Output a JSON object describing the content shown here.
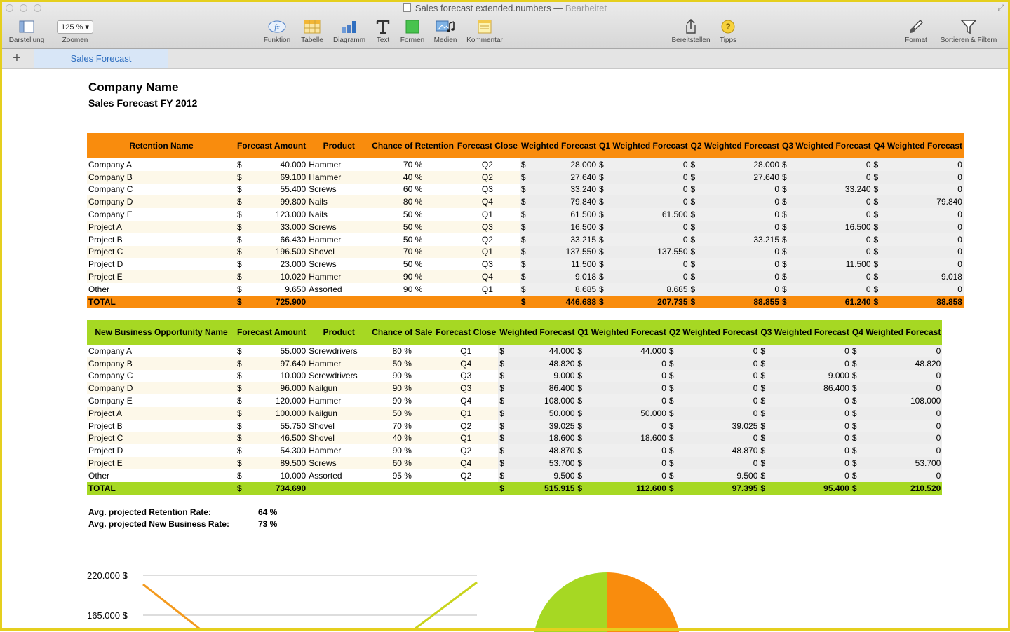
{
  "window": {
    "title": "Sales forecast extended.numbers",
    "separator": "—",
    "status": "Bearbeitet"
  },
  "toolbar": {
    "view_label": "Darstellung",
    "zoom_value": "125 %",
    "zoom_label": "Zoomen",
    "function_label": "Funktion",
    "table_label": "Tabelle",
    "chart_label": "Diagramm",
    "text_label": "Text",
    "shapes_label": "Formen",
    "media_label": "Medien",
    "comment_label": "Kommentar",
    "share_label": "Bereitstellen",
    "tips_label": "Tipps",
    "format_label": "Format",
    "sort_label": "Sortieren & Filtern"
  },
  "tabs": {
    "add": "+",
    "active": "Sales Forecast"
  },
  "doc": {
    "company": "Company Name",
    "subtitle": "Sales Forecast FY 2012"
  },
  "colors": {
    "retention_header": "#f98c0d",
    "new_business_header": "#a6d823",
    "tab_active_text": "#2f6fc0",
    "window_border": "#e5cf1e"
  },
  "retention": {
    "headers": [
      "Retention Name",
      "Forecast Amount",
      "Product",
      "Chance of Retention",
      "Forecast Close",
      "Weighted Forecast",
      "Q1 Weighted Forecast",
      "Q2 Weighted Forecast",
      "Q3 Weighted Forecast",
      "Q4 Weighted Forecast"
    ],
    "rows": [
      [
        "Company A",
        "40.000",
        "Hammer",
        "70 %",
        "Q2",
        "28.000",
        "0",
        "28.000",
        "0",
        "0"
      ],
      [
        "Company B",
        "69.100",
        "Hammer",
        "40 %",
        "Q2",
        "27.640",
        "0",
        "27.640",
        "0",
        "0"
      ],
      [
        "Company C",
        "55.400",
        "Screws",
        "60 %",
        "Q3",
        "33.240",
        "0",
        "0",
        "33.240",
        "0"
      ],
      [
        "Company D",
        "99.800",
        "Nails",
        "80 %",
        "Q4",
        "79.840",
        "0",
        "0",
        "0",
        "79.840"
      ],
      [
        "Company E",
        "123.000",
        "Nails",
        "50 %",
        "Q1",
        "61.500",
        "61.500",
        "0",
        "0",
        "0"
      ],
      [
        "Project A",
        "33.000",
        "Screws",
        "50 %",
        "Q3",
        "16.500",
        "0",
        "0",
        "16.500",
        "0"
      ],
      [
        "Project B",
        "66.430",
        "Hammer",
        "50 %",
        "Q2",
        "33.215",
        "0",
        "33.215",
        "0",
        "0"
      ],
      [
        "Project C",
        "196.500",
        "Shovel",
        "70 %",
        "Q1",
        "137.550",
        "137.550",
        "0",
        "0",
        "0"
      ],
      [
        "Project D",
        "23.000",
        "Screws",
        "50 %",
        "Q3",
        "11.500",
        "0",
        "0",
        "11.500",
        "0"
      ],
      [
        "Project E",
        "10.020",
        "Hammer",
        "90 %",
        "Q4",
        "9.018",
        "0",
        "0",
        "0",
        "9.018"
      ],
      [
        "Other",
        "9.650",
        "Assorted",
        "90 %",
        "Q1",
        "8.685",
        "8.685",
        "0",
        "0",
        "0"
      ]
    ],
    "total": [
      "TOTAL",
      "725.900",
      "",
      "",
      "",
      "446.688",
      "207.735",
      "88.855",
      "61.240",
      "88.858"
    ]
  },
  "new_business": {
    "headers": [
      "New Business Opportunity Name",
      "Forecast Amount",
      "Product",
      "Chance of Sale",
      "Forecast Close",
      "Weighted Forecast",
      "Q1 Weighted Forecast",
      "Q2 Weighted Forecast",
      "Q3 Weighted Forecast",
      "Q4 Weighted Forecast"
    ],
    "rows": [
      [
        "Company A",
        "55.000",
        "Screwdrivers",
        "80 %",
        "Q1",
        "44.000",
        "44.000",
        "0",
        "0",
        "0"
      ],
      [
        "Company B",
        "97.640",
        "Hammer",
        "50 %",
        "Q4",
        "48.820",
        "0",
        "0",
        "0",
        "48.820"
      ],
      [
        "Company C",
        "10.000",
        "Screwdrivers",
        "90 %",
        "Q3",
        "9.000",
        "0",
        "0",
        "9.000",
        "0"
      ],
      [
        "Company D",
        "96.000",
        "Nailgun",
        "90 %",
        "Q3",
        "86.400",
        "0",
        "0",
        "86.400",
        "0"
      ],
      [
        "Company E",
        "120.000",
        "Hammer",
        "90 %",
        "Q4",
        "108.000",
        "0",
        "0",
        "0",
        "108.000"
      ],
      [
        "Project A",
        "100.000",
        "Nailgun",
        "50 %",
        "Q1",
        "50.000",
        "50.000",
        "0",
        "0",
        "0"
      ],
      [
        "Project B",
        "55.750",
        "Shovel",
        "70 %",
        "Q2",
        "39.025",
        "0",
        "39.025",
        "0",
        "0"
      ],
      [
        "Project C",
        "46.500",
        "Shovel",
        "40 %",
        "Q1",
        "18.600",
        "18.600",
        "0",
        "0",
        "0"
      ],
      [
        "Project D",
        "54.300",
        "Hammer",
        "90 %",
        "Q2",
        "48.870",
        "0",
        "48.870",
        "0",
        "0"
      ],
      [
        "Project E",
        "89.500",
        "Screws",
        "60 %",
        "Q4",
        "53.700",
        "0",
        "0",
        "0",
        "53.700"
      ],
      [
        "Other",
        "10.000",
        "Assorted",
        "95 %",
        "Q2",
        "9.500",
        "0",
        "9.500",
        "0",
        "0"
      ]
    ],
    "total": [
      "TOTAL",
      "734.690",
      "",
      "",
      "",
      "515.915",
      "112.600",
      "97.395",
      "95.400",
      "210.520"
    ]
  },
  "currency": "$",
  "rates": {
    "retention_label": "Avg. projected Retention Rate:",
    "retention_value": "64 %",
    "new_label": "Avg. projected New Business Rate:",
    "new_value": "73 %"
  },
  "chart_data": [
    {
      "type": "line",
      "y_tick_labels": [
        "220.000 $",
        "165.000 $"
      ],
      "series_colors": [
        "#f39a1e",
        "#c9d41c"
      ],
      "note_visible": "chart is cropped at bottom of window; only top portion visible"
    },
    {
      "type": "pie",
      "slice_colors": [
        "#f98c0d",
        "#a6d823"
      ]
    }
  ]
}
